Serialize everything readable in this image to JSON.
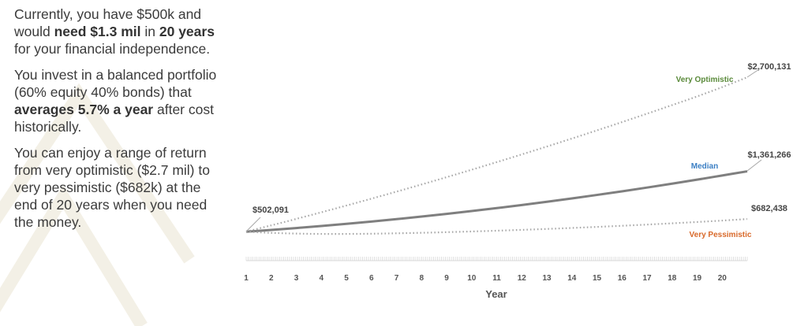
{
  "text": {
    "p1": [
      {
        "t": "Currently, you have $500k and would ",
        "b": false
      },
      {
        "t": "need $1.3 mil",
        "b": true
      },
      {
        "t": " in ",
        "b": false
      },
      {
        "t": "20 years",
        "b": true
      },
      {
        "t": " for your financial independence.",
        "b": false
      }
    ],
    "p2": [
      {
        "t": "You invest in a balanced portfolio (60% equity 40% bonds) that ",
        "b": false
      },
      {
        "t": "averages 5.7% a year",
        "b": true
      },
      {
        "t": " after cost historically.",
        "b": false
      }
    ],
    "p3": [
      {
        "t": "You can enjoy a range of return from very optimistic ($2.7 mil) to very pessimistic ($682k) at the end of 20 years when you need the money.",
        "b": false
      }
    ]
  },
  "chart_data": {
    "type": "line",
    "xlabel": "Year",
    "ylabel": "",
    "title": "",
    "x_tick_labels": [
      "1",
      "2",
      "3",
      "4",
      "5",
      "6",
      "7",
      "8",
      "9",
      "10",
      "11",
      "12",
      "13",
      "14",
      "15",
      "16",
      "17",
      "18",
      "19",
      "20"
    ],
    "x": [
      1,
      2,
      3,
      4,
      5,
      6,
      7,
      8,
      9,
      10,
      11,
      12,
      13,
      14,
      15,
      16,
      17,
      18,
      19,
      20,
      21
    ],
    "grid": false,
    "series": [
      {
        "name": "Very Optimistic",
        "label_color": "#5a8a3a",
        "line_color": "#a6a6a6",
        "style": "dotted",
        "values": [
          502091,
          592000,
          684000,
          778000,
          874000,
          972000,
          1072000,
          1174000,
          1278000,
          1384000,
          1492000,
          1602000,
          1714000,
          1828000,
          1944000,
          2062000,
          2182000,
          2304000,
          2428000,
          2560000,
          2700131
        ],
        "end_label": "$2,700,131"
      },
      {
        "name": "Median",
        "label_color": "#3b7fc4",
        "line_color": "#7f7f7f",
        "style": "solid",
        "values": [
          502091,
          527100,
          554000,
          582800,
          613500,
          646100,
          680600,
          717000,
          755300,
          795500,
          837600,
          881600,
          927500,
          975300,
          1025000,
          1076600,
          1130100,
          1185500,
          1242800,
          1302000,
          1361266
        ],
        "end_label": "$1,361,266"
      },
      {
        "name": "Very Pessimistic",
        "label_color": "#d8692a",
        "line_color": "#a6a6a6",
        "style": "dotted",
        "values": [
          502091,
          485000,
          475000,
          470000,
          470000,
          473000,
          479000,
          486000,
          495000,
          505000,
          516000,
          528000,
          541000,
          555000,
          570000,
          586000,
          603000,
          621000,
          640000,
          660000,
          682438
        ],
        "end_label": "$682,438"
      }
    ],
    "start_label": "$502,091"
  }
}
